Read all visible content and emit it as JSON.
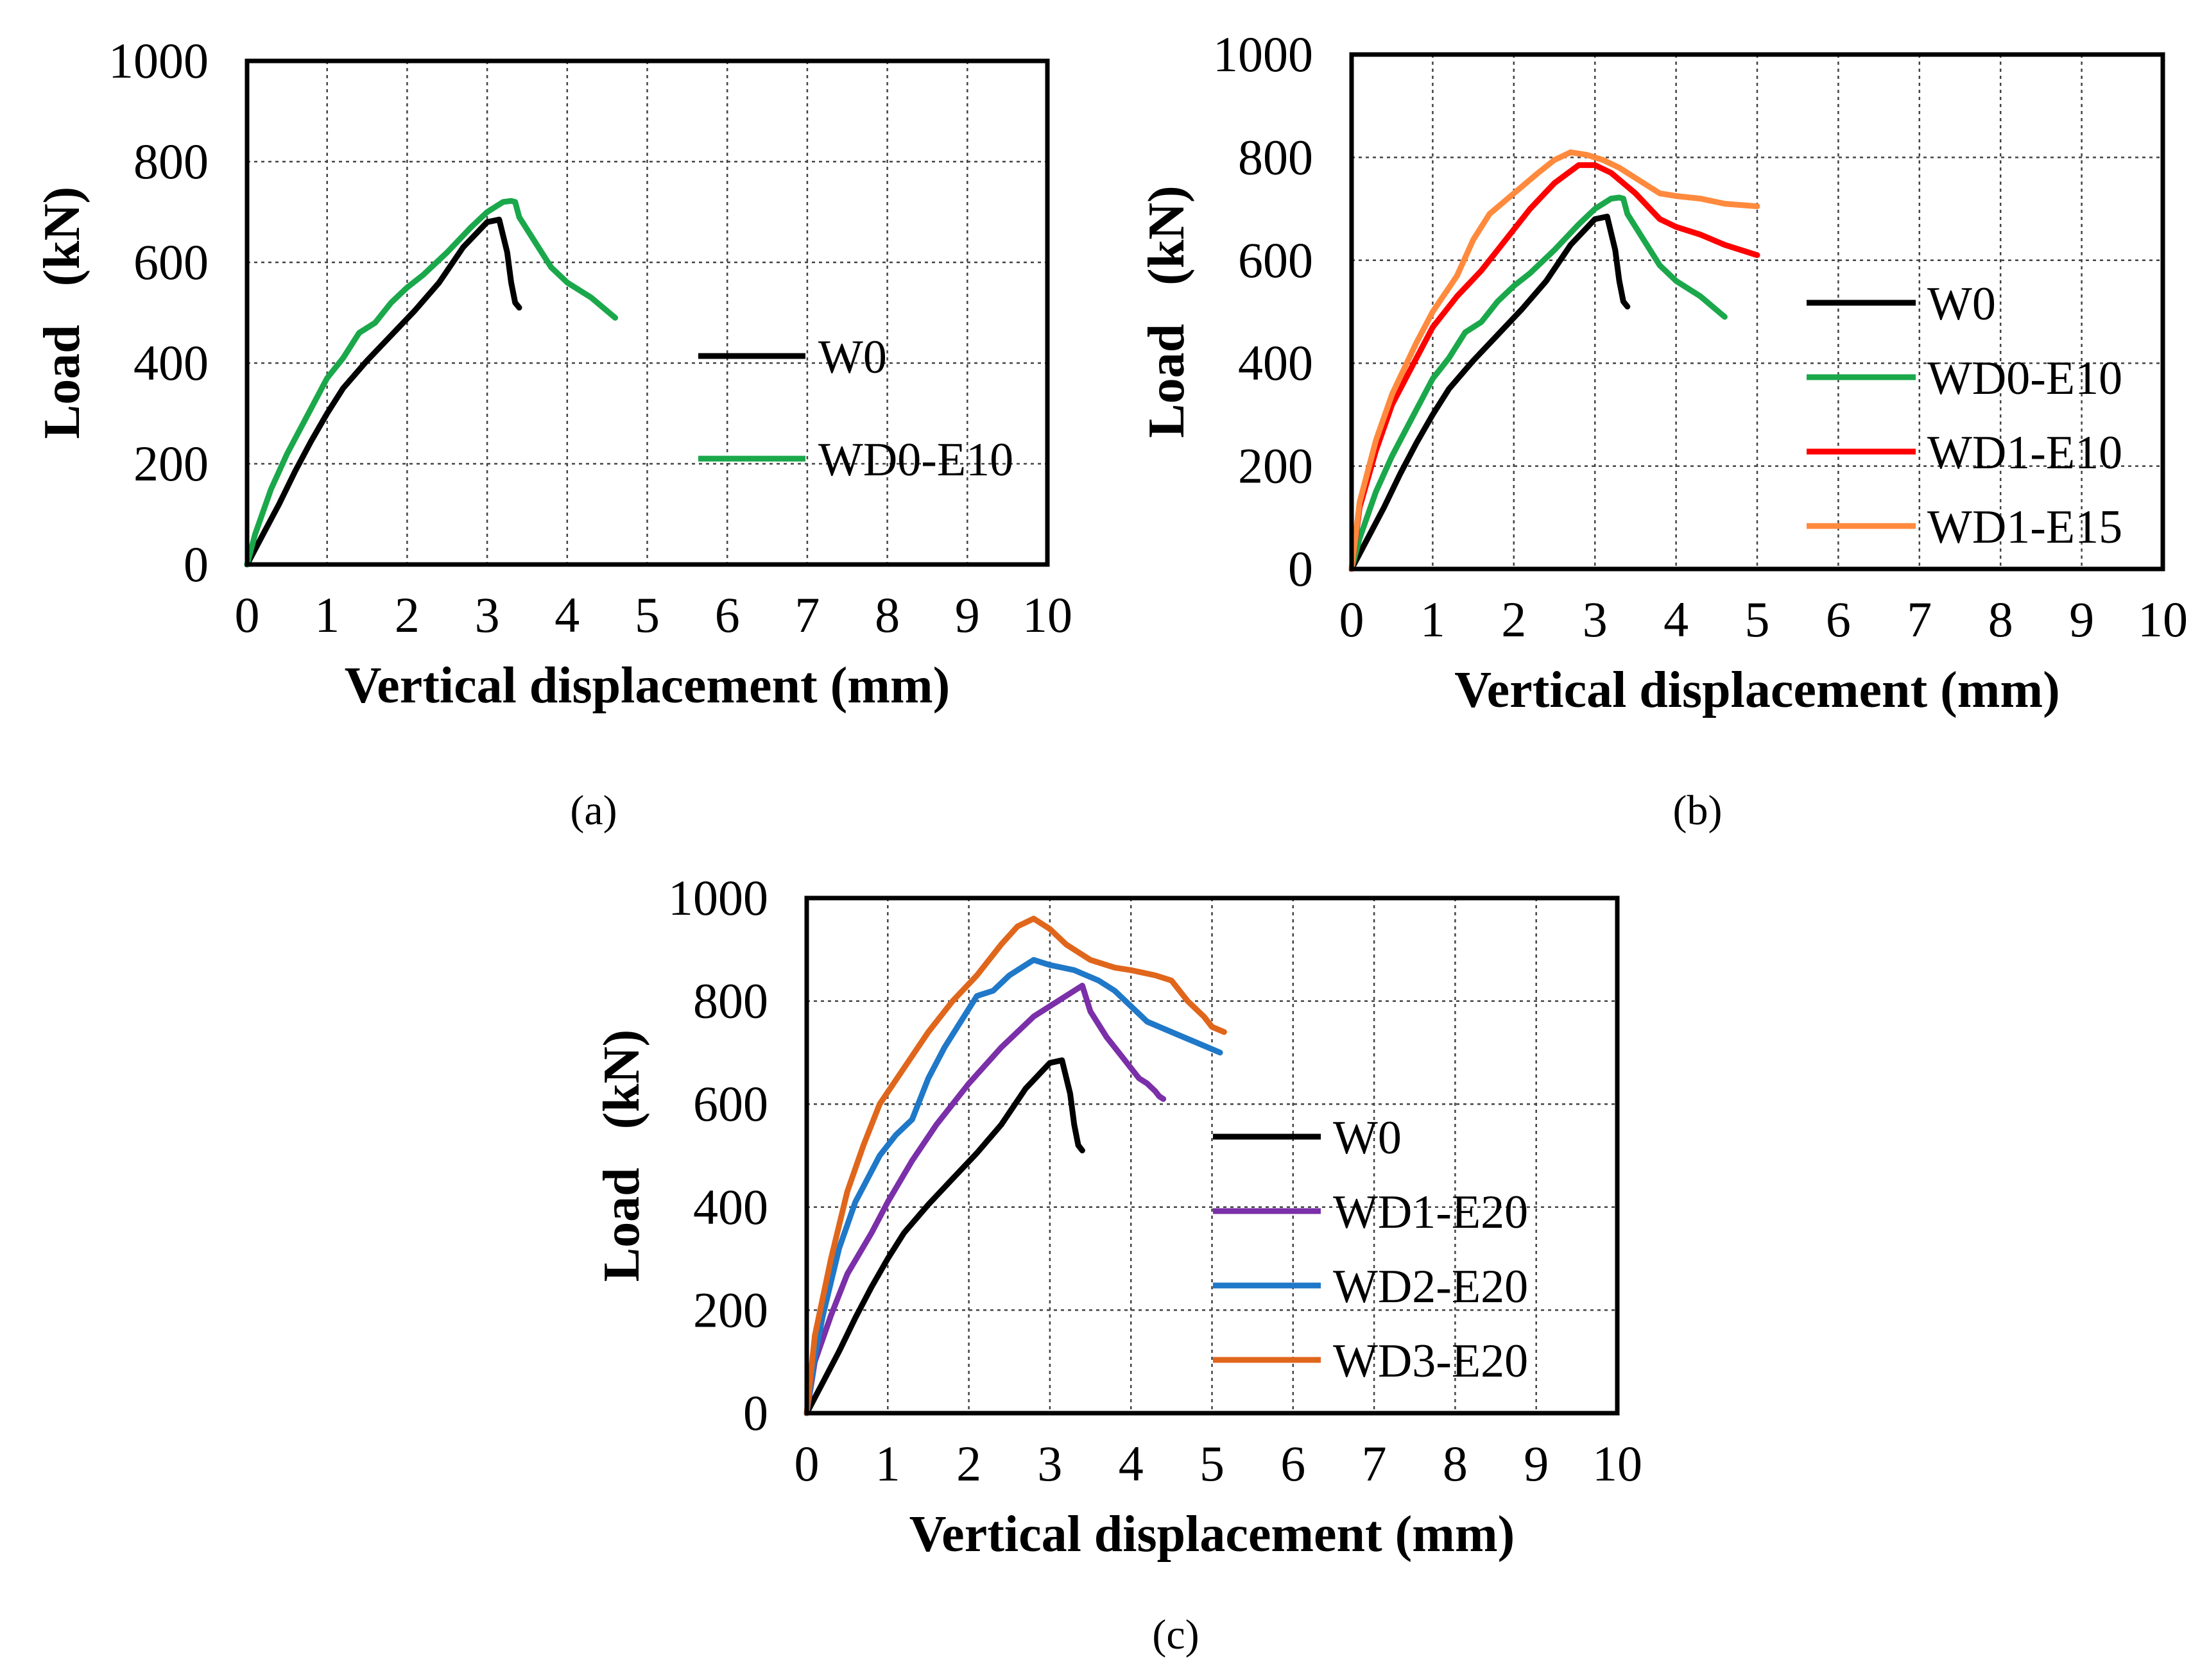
{
  "chart_data": [
    {
      "type": "line",
      "panel_label": "(a)",
      "xlabel": "Vertical displacement  (mm)",
      "ylabel": "Load   (kN)",
      "xlim": [
        0,
        10
      ],
      "ylim": [
        0,
        1000
      ],
      "xticks": [
        "0",
        "1",
        "2",
        "3",
        "4",
        "5",
        "6",
        "7",
        "8",
        "9",
        "10"
      ],
      "yticks": [
        "0",
        "200",
        "400",
        "600",
        "800",
        "1000"
      ],
      "grid": true,
      "legend_position": "right-middle",
      "series": [
        {
          "name": "W0",
          "color": "#000000",
          "x": [
            0,
            0.2,
            0.4,
            0.6,
            0.8,
            1.0,
            1.2,
            1.5,
            1.8,
            2.1,
            2.4,
            2.7,
            3.0,
            3.15,
            3.25,
            3.3,
            3.35,
            3.4
          ],
          "y": [
            0,
            60,
            120,
            185,
            245,
            300,
            350,
            405,
            455,
            505,
            560,
            630,
            680,
            685,
            620,
            560,
            520,
            510
          ]
        },
        {
          "name": "WD0-E10",
          "color": "#1aa84b",
          "x": [
            0,
            0.1,
            0.3,
            0.5,
            0.8,
            1.0,
            1.2,
            1.4,
            1.6,
            1.8,
            2.0,
            2.2,
            2.5,
            2.8,
            3.0,
            3.2,
            3.3,
            3.35,
            3.4,
            3.6,
            3.8,
            4.0,
            4.3,
            4.6
          ],
          "y": [
            0,
            60,
            150,
            220,
            310,
            370,
            410,
            460,
            480,
            520,
            550,
            575,
            620,
            670,
            700,
            720,
            722,
            720,
            690,
            640,
            590,
            560,
            530,
            490
          ]
        }
      ]
    },
    {
      "type": "line",
      "panel_label": "(b)",
      "xlabel": "Vertical displacement  (mm)",
      "ylabel": "Load   (kN)",
      "xlim": [
        0,
        10
      ],
      "ylim": [
        0,
        1000
      ],
      "xticks": [
        "0",
        "1",
        "2",
        "3",
        "4",
        "5",
        "6",
        "7",
        "8",
        "9",
        "10"
      ],
      "yticks": [
        "0",
        "200",
        "400",
        "600",
        "800",
        "1000"
      ],
      "grid": true,
      "legend_position": "right-middle",
      "series": [
        {
          "name": "W0",
          "color": "#000000",
          "x": [
            0,
            0.2,
            0.4,
            0.6,
            0.8,
            1.0,
            1.2,
            1.5,
            1.8,
            2.1,
            2.4,
            2.7,
            3.0,
            3.15,
            3.25,
            3.3,
            3.35,
            3.4
          ],
          "y": [
            0,
            60,
            120,
            185,
            245,
            300,
            350,
            405,
            455,
            505,
            560,
            630,
            680,
            685,
            620,
            560,
            520,
            510
          ]
        },
        {
          "name": "WD0-E10",
          "color": "#1aa84b",
          "x": [
            0,
            0.1,
            0.3,
            0.5,
            0.8,
            1.0,
            1.2,
            1.4,
            1.6,
            1.8,
            2.0,
            2.2,
            2.5,
            2.8,
            3.0,
            3.2,
            3.3,
            3.35,
            3.4,
            3.6,
            3.8,
            4.0,
            4.3,
            4.6
          ],
          "y": [
            0,
            60,
            150,
            220,
            310,
            370,
            410,
            460,
            480,
            520,
            550,
            575,
            620,
            670,
            700,
            720,
            722,
            720,
            690,
            640,
            590,
            560,
            530,
            490
          ]
        },
        {
          "name": "WD1-E10",
          "color": "#ff0000",
          "x": [
            0,
            0.1,
            0.3,
            0.5,
            0.8,
            1.0,
            1.3,
            1.6,
            1.9,
            2.2,
            2.5,
            2.8,
            3.0,
            3.2,
            3.5,
            3.8,
            4.0,
            4.3,
            4.6,
            5.0
          ],
          "y": [
            0,
            120,
            230,
            320,
            410,
            470,
            530,
            580,
            640,
            700,
            750,
            785,
            785,
            770,
            730,
            680,
            665,
            650,
            630,
            610
          ]
        },
        {
          "name": "WD1-E15",
          "color": "#ff8a3d",
          "x": [
            0,
            0.1,
            0.3,
            0.5,
            0.8,
            1.0,
            1.3,
            1.5,
            1.7,
            2.0,
            2.3,
            2.5,
            2.7,
            2.9,
            3.1,
            3.3,
            3.5,
            3.8,
            4.0,
            4.3,
            4.6,
            5.0
          ],
          "y": [
            0,
            130,
            250,
            340,
            440,
            500,
            570,
            640,
            690,
            730,
            770,
            795,
            810,
            805,
            795,
            780,
            760,
            730,
            725,
            720,
            710,
            705
          ]
        }
      ]
    },
    {
      "type": "line",
      "panel_label": "(c)",
      "xlabel": "Vertical displacement  (mm)",
      "ylabel": "Load   (kN)",
      "xlim": [
        0,
        10
      ],
      "ylim": [
        0,
        1000
      ],
      "xticks": [
        "0",
        "1",
        "2",
        "3",
        "4",
        "5",
        "6",
        "7",
        "8",
        "9",
        "10"
      ],
      "yticks": [
        "0",
        "200",
        "400",
        "600",
        "800",
        "1000"
      ],
      "grid": true,
      "legend_position": "right-middle",
      "series": [
        {
          "name": "W0",
          "color": "#000000",
          "x": [
            0,
            0.2,
            0.4,
            0.6,
            0.8,
            1.0,
            1.2,
            1.5,
            1.8,
            2.1,
            2.4,
            2.7,
            3.0,
            3.15,
            3.25,
            3.3,
            3.35,
            3.4
          ],
          "y": [
            0,
            60,
            120,
            185,
            245,
            300,
            350,
            405,
            455,
            505,
            560,
            630,
            680,
            685,
            620,
            560,
            520,
            510
          ]
        },
        {
          "name": "WD1-E20",
          "color": "#7b2fa8",
          "x": [
            0,
            0.1,
            0.3,
            0.5,
            0.8,
            1.0,
            1.3,
            1.6,
            2.0,
            2.4,
            2.8,
            3.1,
            3.3,
            3.4,
            3.5,
            3.7,
            3.9,
            4.0,
            4.1,
            4.2,
            4.3,
            4.35,
            4.4
          ],
          "y": [
            0,
            100,
            190,
            270,
            350,
            410,
            490,
            560,
            640,
            710,
            770,
            800,
            820,
            830,
            780,
            730,
            690,
            670,
            650,
            640,
            625,
            615,
            610
          ]
        },
        {
          "name": "WD2-E20",
          "color": "#1f78c8",
          "x": [
            0,
            0.1,
            0.2,
            0.4,
            0.6,
            0.9,
            1.1,
            1.3,
            1.5,
            1.7,
            1.9,
            2.1,
            2.3,
            2.5,
            2.7,
            2.8,
            3.0,
            3.3,
            3.6,
            3.8,
            4.0,
            4.2,
            4.5,
            4.8,
            5.1
          ],
          "y": [
            0,
            110,
            190,
            320,
            410,
            500,
            540,
            570,
            650,
            710,
            760,
            810,
            820,
            850,
            870,
            880,
            870,
            860,
            840,
            820,
            790,
            760,
            740,
            720,
            700
          ]
        },
        {
          "name": "WD3-E20",
          "color": "#e0661c",
          "x": [
            0,
            0.1,
            0.3,
            0.5,
            0.7,
            0.9,
            1.2,
            1.5,
            1.8,
            2.1,
            2.4,
            2.6,
            2.8,
            3.0,
            3.2,
            3.5,
            3.8,
            4.0,
            4.3,
            4.5,
            4.7,
            4.9,
            5.0,
            5.15
          ],
          "y": [
            0,
            150,
            300,
            430,
            520,
            600,
            670,
            740,
            800,
            850,
            910,
            945,
            960,
            940,
            910,
            880,
            865,
            860,
            850,
            840,
            800,
            770,
            750,
            740
          ]
        }
      ]
    }
  ]
}
